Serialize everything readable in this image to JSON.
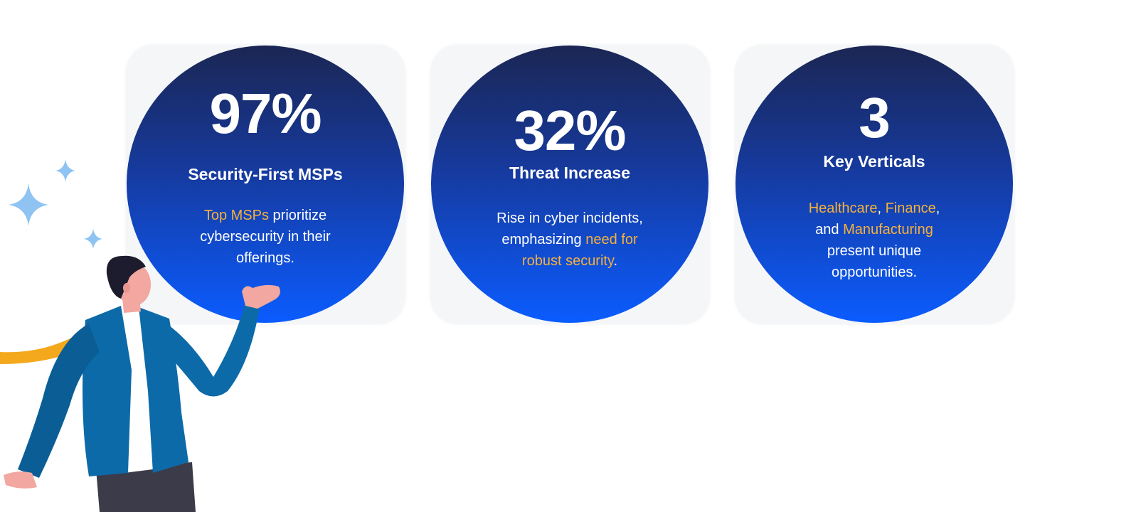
{
  "stats": [
    {
      "number": "97%",
      "title": "Security-First MSPs",
      "desc": {
        "highlight": "Top MSPs",
        "rest": " prioritize cybersecurity in their offerings."
      }
    },
    {
      "number": "32%",
      "title": "Threat Increase",
      "desc": {
        "lead": "Rise in cyber incidents, emphasizing ",
        "highlight": "need for robust security",
        "tail": "."
      }
    },
    {
      "number": "3",
      "title": "Key Verticals",
      "desc": {
        "h1": "Healthcare",
        "sep1": ", ",
        "h2": "Finance",
        "sep2": ", and ",
        "h3": "Manufacturing",
        "tail": " present unique opportunities."
      }
    }
  ],
  "colors": {
    "circle_top": "#1b2653",
    "circle_bottom": "#0b5cff",
    "highlight": "#f6b13a",
    "jacket": "#0d6aa8",
    "tie": "#f4a81b",
    "sparkle": "#8fc3f2"
  },
  "icons": {
    "sparkles": "sparkle-icon",
    "person": "businessman-illustration"
  }
}
